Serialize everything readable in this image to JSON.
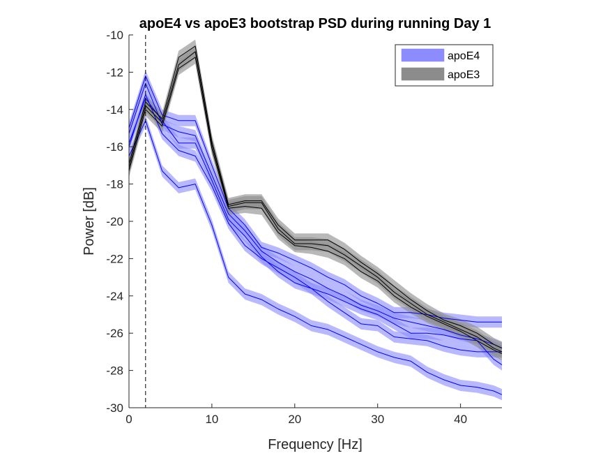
{
  "chart_data": {
    "type": "line",
    "title": "apoE4 vs apoE3 bootstrap PSD during running Day 1",
    "xlabel": "Frequency [Hz]",
    "ylabel": "Power [dB]",
    "xlim": [
      0,
      45
    ],
    "ylim": [
      -30,
      -10
    ],
    "xticks": [
      0,
      10,
      20,
      30,
      40
    ],
    "yticks": [
      -30,
      -28,
      -26,
      -24,
      -22,
      -20,
      -18,
      -16,
      -14,
      -12,
      -10
    ],
    "grid": false,
    "legend_position": "top-right",
    "vline_x": 2,
    "x": [
      0,
      2,
      4,
      6,
      8,
      10,
      12,
      14,
      16,
      18,
      20,
      22,
      24,
      26,
      28,
      30,
      32,
      34,
      36,
      38,
      40,
      42,
      44,
      45
    ],
    "series": [
      {
        "name": "apoE4",
        "color": "#0000ff",
        "band_color": "#8c8cff",
        "band_halfwidth": 0.3,
        "lines": [
          [
            -15.0,
            -12.2,
            -14.3,
            -14.6,
            -14.6,
            -17.0,
            -19.3,
            -20.2,
            -21.4,
            -21.7,
            -22.1,
            -22.5,
            -23.0,
            -23.4,
            -24.0,
            -24.4,
            -24.9,
            -24.9,
            -25.0,
            -25.2,
            -25.3,
            -25.4,
            -25.4,
            -25.4
          ],
          [
            -15.3,
            -12.6,
            -14.8,
            -15.2,
            -15.4,
            -17.5,
            -19.6,
            -20.5,
            -21.6,
            -22.2,
            -22.7,
            -23.1,
            -23.6,
            -24.0,
            -24.5,
            -24.8,
            -25.2,
            -25.4,
            -25.6,
            -25.8,
            -26.1,
            -26.3,
            -26.6,
            -26.8
          ],
          [
            -15.8,
            -13.4,
            -14.6,
            -15.8,
            -15.8,
            -17.8,
            -19.9,
            -20.8,
            -21.9,
            -22.7,
            -23.3,
            -23.6,
            -23.9,
            -24.3,
            -24.7,
            -25.0,
            -25.5,
            -26.0,
            -26.0,
            -26.1,
            -26.3,
            -26.4,
            -27.4,
            -27.7
          ],
          [
            -16.0,
            -13.2,
            -15.3,
            -16.2,
            -16.5,
            -18.1,
            -20.1,
            -21.3,
            -22.0,
            -22.5,
            -23.0,
            -23.6,
            -24.3,
            -24.9,
            -25.5,
            -25.6,
            -26.2,
            -26.3,
            -26.4,
            -26.7,
            -26.9,
            -27.0,
            -27.0,
            -27.0
          ],
          [
            -16.5,
            -14.6,
            -17.3,
            -18.2,
            -18.0,
            -20.2,
            -23.0,
            -23.9,
            -24.2,
            -24.7,
            -25.1,
            -25.6,
            -25.8,
            -26.2,
            -26.6,
            -27.0,
            -27.3,
            -27.5,
            -28.1,
            -28.5,
            -28.8,
            -28.9,
            -29.1,
            -29.3
          ]
        ]
      },
      {
        "name": "apoE3",
        "color": "#000000",
        "band_color": "#8c8c8c",
        "band_halfwidth": 0.35,
        "lines": [
          [
            -16.9,
            -13.6,
            -14.5,
            -11.2,
            -10.6,
            -15.7,
            -19.1,
            -18.9,
            -18.9,
            -20.2,
            -21.0,
            -21.0,
            -21.0,
            -21.5,
            -22.2,
            -22.8,
            -23.5,
            -24.2,
            -24.8,
            -25.3,
            -25.6,
            -26.0,
            -26.6,
            -26.8
          ],
          [
            -17.1,
            -13.8,
            -14.7,
            -11.6,
            -10.9,
            -15.9,
            -19.2,
            -19.0,
            -19.0,
            -20.4,
            -21.2,
            -21.2,
            -21.3,
            -21.8,
            -22.4,
            -23.0,
            -23.8,
            -24.4,
            -25.0,
            -25.4,
            -25.8,
            -26.2,
            -26.8,
            -27.0
          ],
          [
            -17.3,
            -14.0,
            -14.9,
            -11.8,
            -11.2,
            -16.1,
            -19.3,
            -19.2,
            -19.3,
            -20.6,
            -21.3,
            -21.4,
            -21.6,
            -22.0,
            -22.7,
            -23.2,
            -24.0,
            -24.6,
            -25.1,
            -25.5,
            -25.9,
            -26.4,
            -26.9,
            -27.1
          ]
        ]
      }
    ]
  }
}
